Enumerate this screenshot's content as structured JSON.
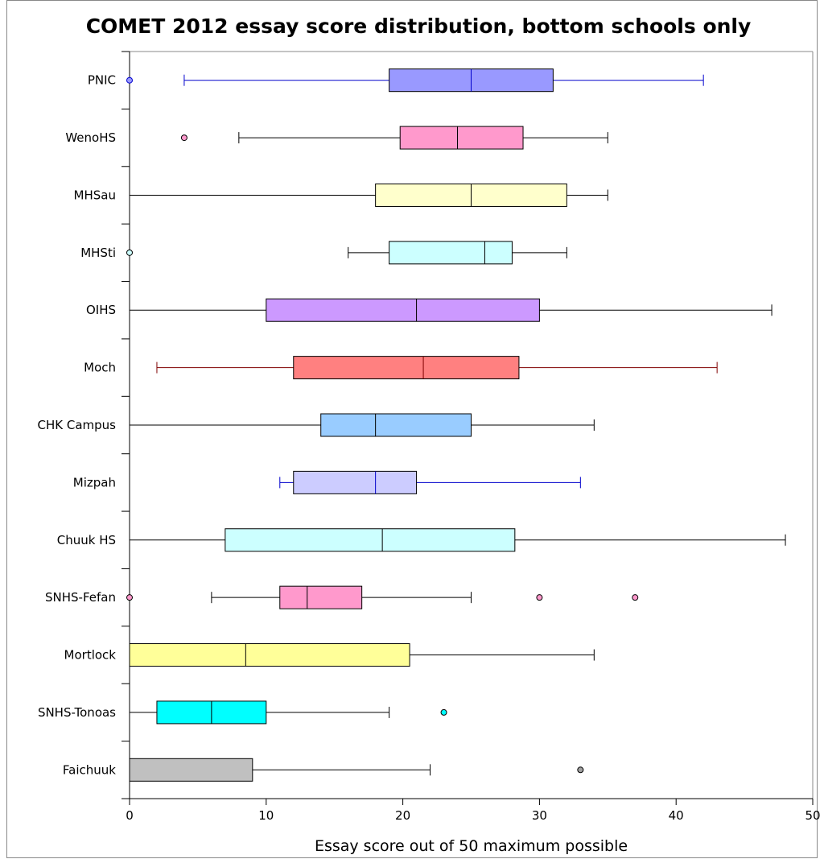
{
  "chart_data": {
    "type": "boxplot",
    "title": "COMET 2012 essay score distribution, bottom schools only",
    "xlabel": "Essay score out of 50 maximum possible",
    "ylabel": "",
    "xlim": [
      0,
      50
    ],
    "xticks": [
      "0",
      "10",
      "20",
      "30",
      "40",
      "50"
    ],
    "grid": false,
    "series": [
      {
        "name": "PNIC",
        "whisker_low": 4,
        "q1": 19,
        "median": 25,
        "q3": 31,
        "whisker_high": 42,
        "outliers": [
          0
        ],
        "fill": "#9999ff",
        "line": "#0000cc",
        "outlier_fill": "#9999ff"
      },
      {
        "name": "WenoHS",
        "whisker_low": 8,
        "q1": 19.8,
        "median": 24,
        "q3": 28.8,
        "whisker_high": 35,
        "outliers": [
          4
        ],
        "fill": "#ff99cc",
        "line": "#000000",
        "outlier_fill": "#ff99cc"
      },
      {
        "name": "MHSau",
        "whisker_low": 0,
        "q1": 18,
        "median": 25,
        "q3": 32,
        "whisker_high": 35,
        "outliers": [],
        "fill": "#ffffcc",
        "line": "#000000",
        "outlier_fill": "#ffffcc"
      },
      {
        "name": "MHSti",
        "whisker_low": 16,
        "q1": 19,
        "median": 26,
        "q3": 28,
        "whisker_high": 32,
        "outliers": [
          0
        ],
        "fill": "#ccffff",
        "line": "#000000",
        "outlier_fill": "#ccffff"
      },
      {
        "name": "OIHS",
        "whisker_low": 0,
        "q1": 10,
        "median": 21,
        "q3": 30,
        "whisker_high": 47,
        "outliers": [],
        "fill": "#cc99ff",
        "line": "#000000",
        "outlier_fill": "#cc99ff"
      },
      {
        "name": "Moch",
        "whisker_low": 2,
        "q1": 12,
        "median": 21.5,
        "q3": 28.5,
        "whisker_high": 43,
        "outliers": [],
        "fill": "#ff8080",
        "line": "#800000",
        "outlier_fill": "#ff8080"
      },
      {
        "name": "CHK Campus",
        "whisker_low": 0,
        "q1": 14,
        "median": 18,
        "q3": 25,
        "whisker_high": 34,
        "outliers": [],
        "fill": "#99ccff",
        "line": "#000000",
        "outlier_fill": "#99ccff"
      },
      {
        "name": "Mizpah",
        "whisker_low": 11,
        "q1": 12,
        "median": 18,
        "q3": 21,
        "whisker_high": 33,
        "outliers": [],
        "fill": "#ccccff",
        "line": "#0000cc",
        "outlier_fill": "#ccccff"
      },
      {
        "name": "Chuuk HS",
        "whisker_low": 0,
        "q1": 7,
        "median": 18.5,
        "q3": 28.2,
        "whisker_high": 48,
        "outliers": [],
        "fill": "#ccffff",
        "line": "#000000",
        "outlier_fill": "#ccffff"
      },
      {
        "name": "SNHS-Fefan",
        "whisker_low": 6,
        "q1": 11,
        "median": 13,
        "q3": 17,
        "whisker_high": 25,
        "outliers": [
          0,
          30,
          37
        ],
        "fill": "#ff99cc",
        "line": "#000000",
        "outlier_fill": "#ff99cc"
      },
      {
        "name": "Mortlock",
        "whisker_low": 0,
        "q1": 0,
        "median": 8.5,
        "q3": 20.5,
        "whisker_high": 34,
        "outliers": [],
        "fill": "#ffff99",
        "line": "#000000",
        "outlier_fill": "#ffff99"
      },
      {
        "name": "SNHS-Tonoas",
        "whisker_low": 0,
        "q1": 2,
        "median": 6,
        "q3": 10,
        "whisker_high": 19,
        "outliers": [
          23
        ],
        "fill": "#00ffff",
        "line": "#000000",
        "outlier_fill": "#00ffff"
      },
      {
        "name": "Faichuuk",
        "whisker_low": 0,
        "q1": 0,
        "median": 0,
        "q3": 9,
        "whisker_high": 22,
        "outliers": [
          33
        ],
        "fill": "#c0c0c0",
        "line": "#000000",
        "outlier_fill": "#a0a0a0"
      }
    ]
  }
}
